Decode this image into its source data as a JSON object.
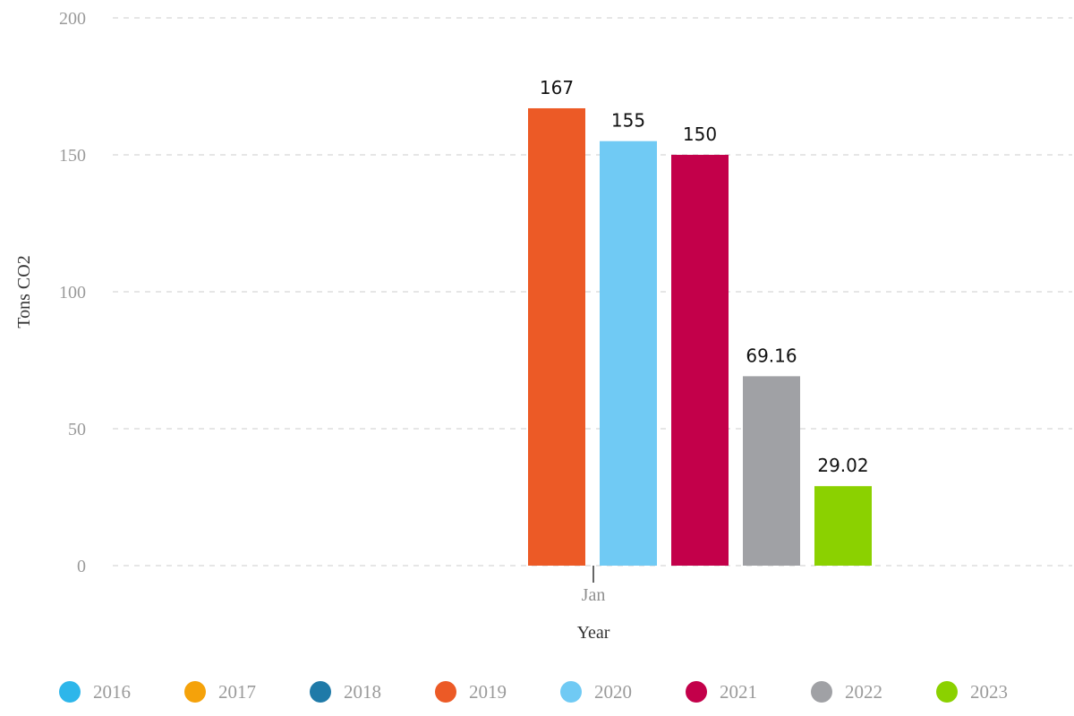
{
  "chart_data": {
    "type": "bar",
    "categories": [
      "Jan"
    ],
    "series": [
      {
        "name": "2016",
        "values": [
          null
        ],
        "color": "#2db6ea"
      },
      {
        "name": "2017",
        "values": [
          null
        ],
        "color": "#f5a20a"
      },
      {
        "name": "2018",
        "values": [
          null
        ],
        "color": "#1f7aa8"
      },
      {
        "name": "2019",
        "values": [
          167
        ],
        "color": "#ec5a26"
      },
      {
        "name": "2020",
        "values": [
          155
        ],
        "color": "#70caf4"
      },
      {
        "name": "2021",
        "values": [
          150
        ],
        "color": "#c3004a"
      },
      {
        "name": "2022",
        "values": [
          69.16
        ],
        "color": "#a0a1a5"
      },
      {
        "name": "2023",
        "values": [
          29.02
        ],
        "color": "#8bd100"
      }
    ],
    "xlabel": "Year",
    "ylabel": "Tons CO2",
    "ylim": [
      0,
      200
    ],
    "yticks": [
      0,
      50,
      100,
      150,
      200
    ],
    "grid": true,
    "legend_position": "bottom"
  }
}
